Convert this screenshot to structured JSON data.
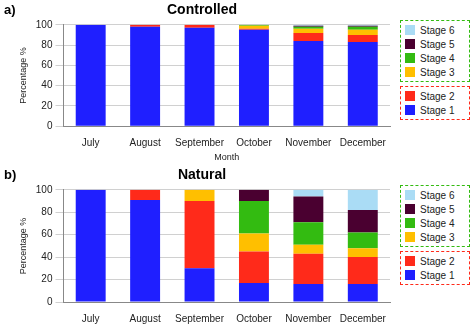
{
  "chart_data": [
    {
      "type": "bar",
      "title": "Controlled",
      "annotations": [
        "a)"
      ],
      "x_label": "Month",
      "y_label": "Percentage %",
      "categories": [
        "July",
        "August",
        "September",
        "October",
        "November",
        "December"
      ],
      "series": [
        {
          "name": "Stage 1",
          "color": "#1f1fff",
          "values": [
            100,
            98,
            97,
            95,
            84,
            83
          ]
        },
        {
          "name": "Stage 2",
          "color": "#ff2a1a",
          "values": [
            0,
            2,
            3,
            1,
            8,
            7
          ]
        },
        {
          "name": "Stage 3",
          "color": "#ffbf00",
          "values": [
            0,
            0,
            0,
            3,
            4,
            5
          ]
        },
        {
          "name": "Stage 4",
          "color": "#33bb11",
          "values": [
            0,
            0,
            0,
            1,
            2,
            3
          ]
        },
        {
          "name": "Stage 5",
          "color": "#4a0030",
          "values": [
            0,
            0,
            0,
            0,
            1,
            1
          ]
        },
        {
          "name": "Stage 6",
          "color": "#aadcf5",
          "values": [
            0,
            0,
            0,
            0,
            1,
            1
          ]
        }
      ],
      "ylim": [
        0,
        100
      ],
      "yticks": [
        0,
        20,
        40,
        60,
        80,
        100
      ],
      "stacked": true,
      "grid": true,
      "legend": "right"
    },
    {
      "type": "bar",
      "title": "Natural",
      "annotations": [
        "b)"
      ],
      "y_label": "Percentage %",
      "categories": [
        "July",
        "August",
        "September",
        "October",
        "November",
        "December"
      ],
      "series": [
        {
          "name": "Stage 1",
          "color": "#1f1fff",
          "values": [
            100,
            91,
            30,
            17,
            16,
            16
          ]
        },
        {
          "name": "Stage 2",
          "color": "#ff2a1a",
          "values": [
            0,
            9,
            60,
            28,
            27,
            24
          ]
        },
        {
          "name": "Stage 3",
          "color": "#ffbf00",
          "values": [
            0,
            0,
            10,
            16,
            8,
            8
          ]
        },
        {
          "name": "Stage 4",
          "color": "#33bb11",
          "values": [
            0,
            0,
            0,
            29,
            20,
            14
          ]
        },
        {
          "name": "Stage 5",
          "color": "#4a0030",
          "values": [
            0,
            0,
            0,
            10,
            23,
            20
          ]
        },
        {
          "name": "Stage 6",
          "color": "#aadcf5",
          "values": [
            0,
            0,
            0,
            0,
            6,
            18
          ]
        }
      ],
      "ylim": [
        0,
        100
      ],
      "yticks": [
        0,
        20,
        40,
        60,
        80,
        100
      ],
      "stacked": true,
      "grid": true,
      "legend": "right"
    }
  ]
}
